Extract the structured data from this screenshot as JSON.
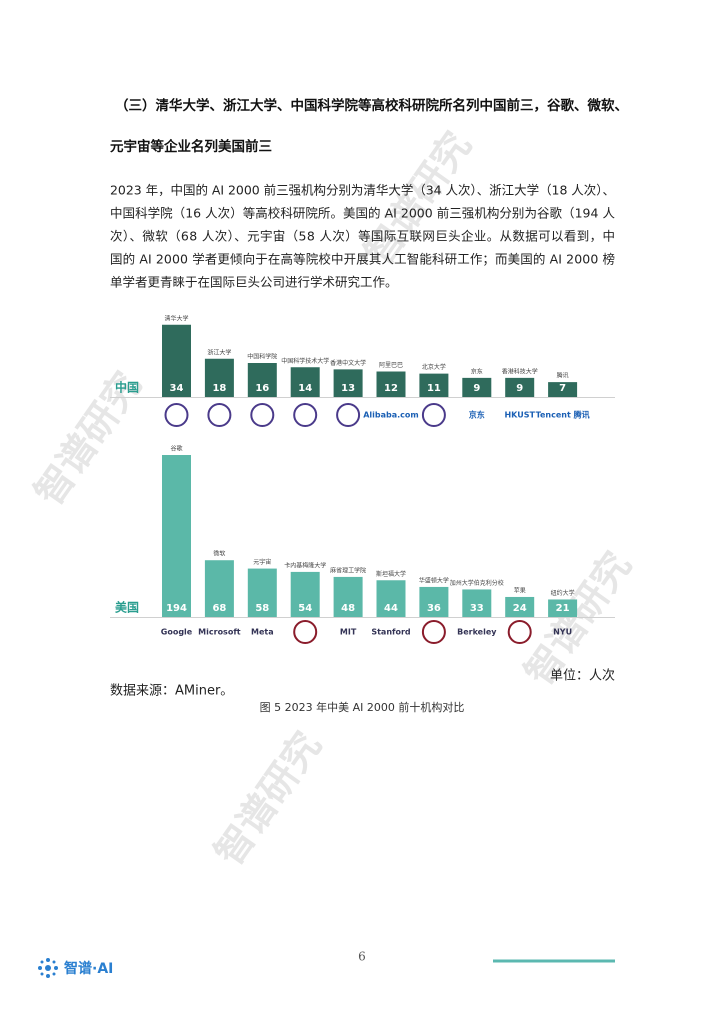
{
  "heading": [
    "（三）清华大学、浙江大学、中国科学院等高校科研院所名列中国前三，谷歌、微软、",
    "元宇宙等企业名列美国前三"
  ],
  "paragraph": [
    "2023 年，中国的 AI 2000 前三强机构分别为清华大学（34 人次）、浙江大学（18 人次）、",
    "中国科学院（16 人次）等高校科研院所。美国的 AI 2000 前三强机构分别为谷歌（194 人",
    "次）、微软（68 人次）、元宇宙（58 人次）等国际互联网巨头企业。从数据可以看到，中",
    "国的 AI 2000 学者更倾向于在高等院校中开展其人工智能科研工作；而美国的 AI 2000 榜",
    "单学者更青睐于在国际巨头公司进行学术研究工作。"
  ],
  "figure": {
    "type": "bar",
    "groups": [
      {
        "name": "中国",
        "color": "#2f6b5c",
        "ylim": [
          0,
          40
        ],
        "categories": [
          "清华大学",
          "浙江大学",
          "中国科学院",
          "中国科学技术大学",
          "香港中文大学",
          "阿里巴巴",
          "北京大学",
          "京东",
          "香港科技大学",
          "腾讯"
        ],
        "values": [
          34,
          18,
          16,
          14,
          13,
          12,
          11,
          9,
          9,
          7
        ],
        "logos": [
          null,
          null,
          null,
          null,
          null,
          "Alibaba.com",
          null,
          "京东",
          "HKUST",
          "Tencent 腾讯"
        ]
      },
      {
        "name": "美国",
        "color": "#5bb8a8",
        "ylim": [
          0,
          200
        ],
        "categories": [
          "谷歌",
          "微软",
          "元宇宙",
          "卡内基梅隆大学",
          "麻省理工学院",
          "斯坦福大学",
          "华盛顿大学",
          "加州大学伯克利分校",
          "苹果",
          "纽约大学"
        ],
        "values": [
          194,
          68,
          58,
          54,
          48,
          44,
          36,
          33,
          24,
          21
        ],
        "logos": [
          "Google",
          "Microsoft",
          "Meta",
          null,
          "MIT",
          "Stanford",
          null,
          "Berkeley",
          null,
          "NYU"
        ]
      }
    ],
    "unit": "单位：人次",
    "source": "数据来源：AMiner。",
    "caption": "图 5 2023 年中美 AI 2000 前十机构对比"
  },
  "watermark": "智谱研究",
  "page_number": "6",
  "footer": {
    "logo": "智谱·AI"
  }
}
